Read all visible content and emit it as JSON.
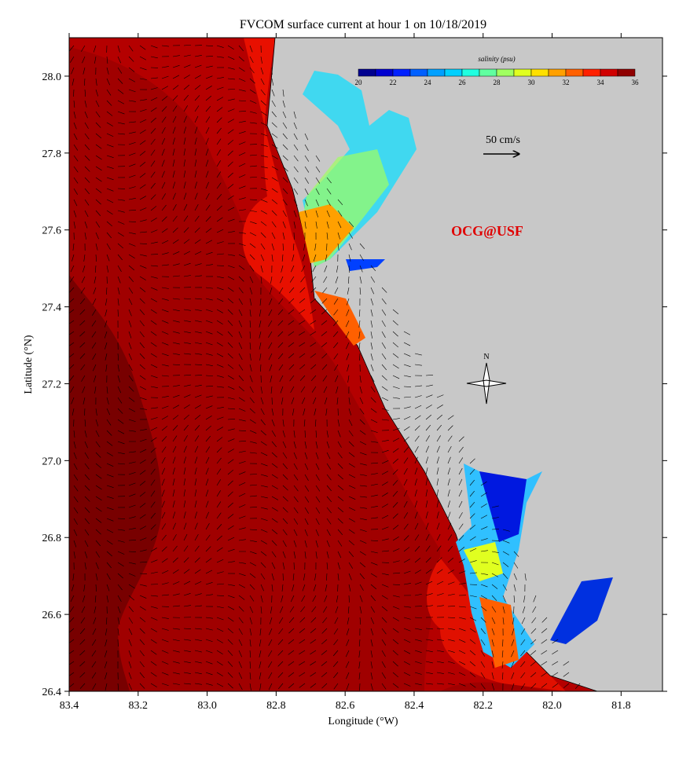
{
  "header": {
    "title": "FVCOM surface current at hour 1 on 10/18/2019"
  },
  "map": {
    "x_label": "Longitude (°W)",
    "y_label": "Latitude (°N)",
    "xlim": [
      83.4,
      81.68
    ],
    "ylim": [
      26.4,
      28.1
    ],
    "xticks": [
      83.4,
      83.2,
      {
        "value": 83,
        "label": "83.0"
      },
      82.8,
      82.6,
      82.4,
      82.2,
      {
        "value": 82,
        "label": "82.0"
      },
      81.8
    ],
    "yticks": [
      26.4,
      26.6,
      26.8,
      {
        "value": 27,
        "label": "27.0"
      },
      27.2,
      27.4,
      27.6,
      27.8,
      {
        "value": 28,
        "label": "28.0"
      }
    ]
  },
  "colorbar": {
    "label": "salinity (psu)",
    "lim": [
      20,
      36
    ],
    "ticks": [
      20,
      22,
      24,
      26,
      28,
      30,
      32,
      34,
      36
    ],
    "colors": [
      "#00008f",
      "#0000d0",
      "#0020ff",
      "#0060ff",
      "#00a0ff",
      "#00d0ff",
      "#20ffe0",
      "#60ffa0",
      "#a0ff60",
      "#e0ff20",
      "#ffe000",
      "#ffa000",
      "#ff6000",
      "#ff2000",
      "#d00000",
      "#8f0000"
    ]
  },
  "scale_arrow": {
    "label": "50 cm/s"
  },
  "watermark": "OCG@USF",
  "compass": "N"
}
